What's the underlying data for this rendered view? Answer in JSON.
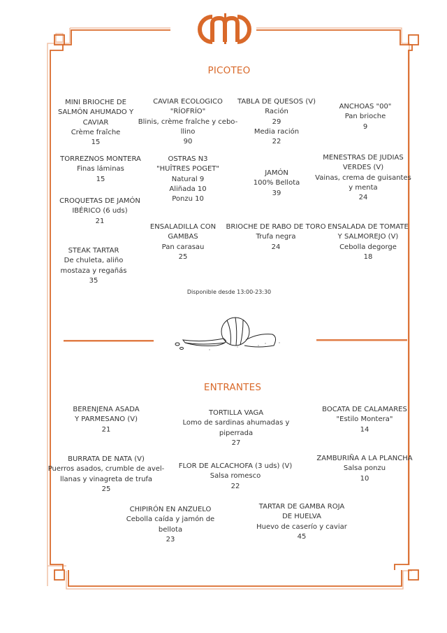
{
  "logo": {
    "text": "cmd",
    "color": "#d9692a"
  },
  "accent_color": "#d9692a",
  "sections": {
    "picoteo": {
      "title": "PICOTEO",
      "note": "Disponible desde 13:00-23:30",
      "items": [
        {
          "lines": [
            "MINI BRIOCHE DE",
            "SALMÓN AHUMADO Y",
            "CAVIAR",
            "Crème fraîche",
            "15"
          ]
        },
        {
          "lines": [
            "CAVIAR ECOLOGICO",
            "\"RÍOFRÍO\"",
            "Blinis, crème fraîche y cebo-",
            "llino",
            "90"
          ]
        },
        {
          "lines": [
            "TABLA DE QUESOS (V)",
            "Ración",
            "29",
            "Media ración",
            "22"
          ]
        },
        {
          "lines": [
            "ANCHOAS \"00\"",
            "Pan brioche",
            "9"
          ]
        },
        {
          "lines": [
            "TORREZNOS MONTERA",
            "Finas láminas",
            "15"
          ]
        },
        {
          "lines": [
            "OSTRAS N3",
            "\"HUÎTRES POGET\"",
            "Natural  9",
            "Aliñada 10",
            "Ponzu 10"
          ]
        },
        {
          "lines": [
            "JAMÓN",
            "100% Bellota",
            "39"
          ]
        },
        {
          "lines": [
            "MENESTRAS DE JUDIAS",
            "VERDES (V)",
            "Vainas, crema de guisantes",
            "y menta",
            "24"
          ]
        },
        {
          "lines": [
            "CROQUETAS DE JAMÓN",
            "IBÉRICO (6 uds)",
            "21"
          ]
        },
        {
          "lines": [
            "ENSALADILLA CON",
            "GAMBAS",
            "Pan carasau",
            "25"
          ]
        },
        {
          "lines": [
            "BRIOCHE DE RABO DE TORO",
            "Trufa negra",
            "24"
          ]
        },
        {
          "lines": [
            "ENSALADA DE TOMATE",
            "Y SALMOREJO (V)",
            "Cebolla degorge",
            "18"
          ]
        },
        {
          "lines": [
            "STEAK TARTAR",
            "De chuleta, aliño",
            "mostaza y regañás",
            "35"
          ]
        }
      ]
    },
    "entrantes": {
      "title": "ENTRANTES",
      "items": [
        {
          "lines": [
            "BERENJENA ASADA",
            "Y PARMESANO (V)",
            "21"
          ]
        },
        {
          "lines": [
            "TORTILLA VAGA",
            "Lomo de sardinas ahumadas y",
            "piperrada",
            "27"
          ]
        },
        {
          "lines": [
            "BOCATA DE CALAMARES",
            "\"Estilo Montera\"",
            "14"
          ]
        },
        {
          "lines": [
            "BURRATA DE NATA (V)",
            "Puerros asados, crumble de avel-",
            "llanas y vinagreta de trufa",
            "25"
          ]
        },
        {
          "lines": [
            "FLOR DE ALCACHOFA (3 uds) (V)",
            "Salsa romesco",
            "22"
          ]
        },
        {
          "lines": [
            "ZAMBURIÑA A LA PLANCHA",
            "Salsa ponzu",
            "10"
          ]
        },
        {
          "lines": [
            "CHIPIRÓN EN ANZUELO",
            "Cebolla caída y jamón de",
            "bellota",
            "23"
          ]
        },
        {
          "lines": [
            "TARTAR DE GAMBA ROJA",
            "DE HUELVA",
            "Huevo de caserío y caviar",
            "45"
          ]
        }
      ]
    }
  },
  "illustration": {
    "icon": "onion-and-peppers-sketch-icon"
  }
}
